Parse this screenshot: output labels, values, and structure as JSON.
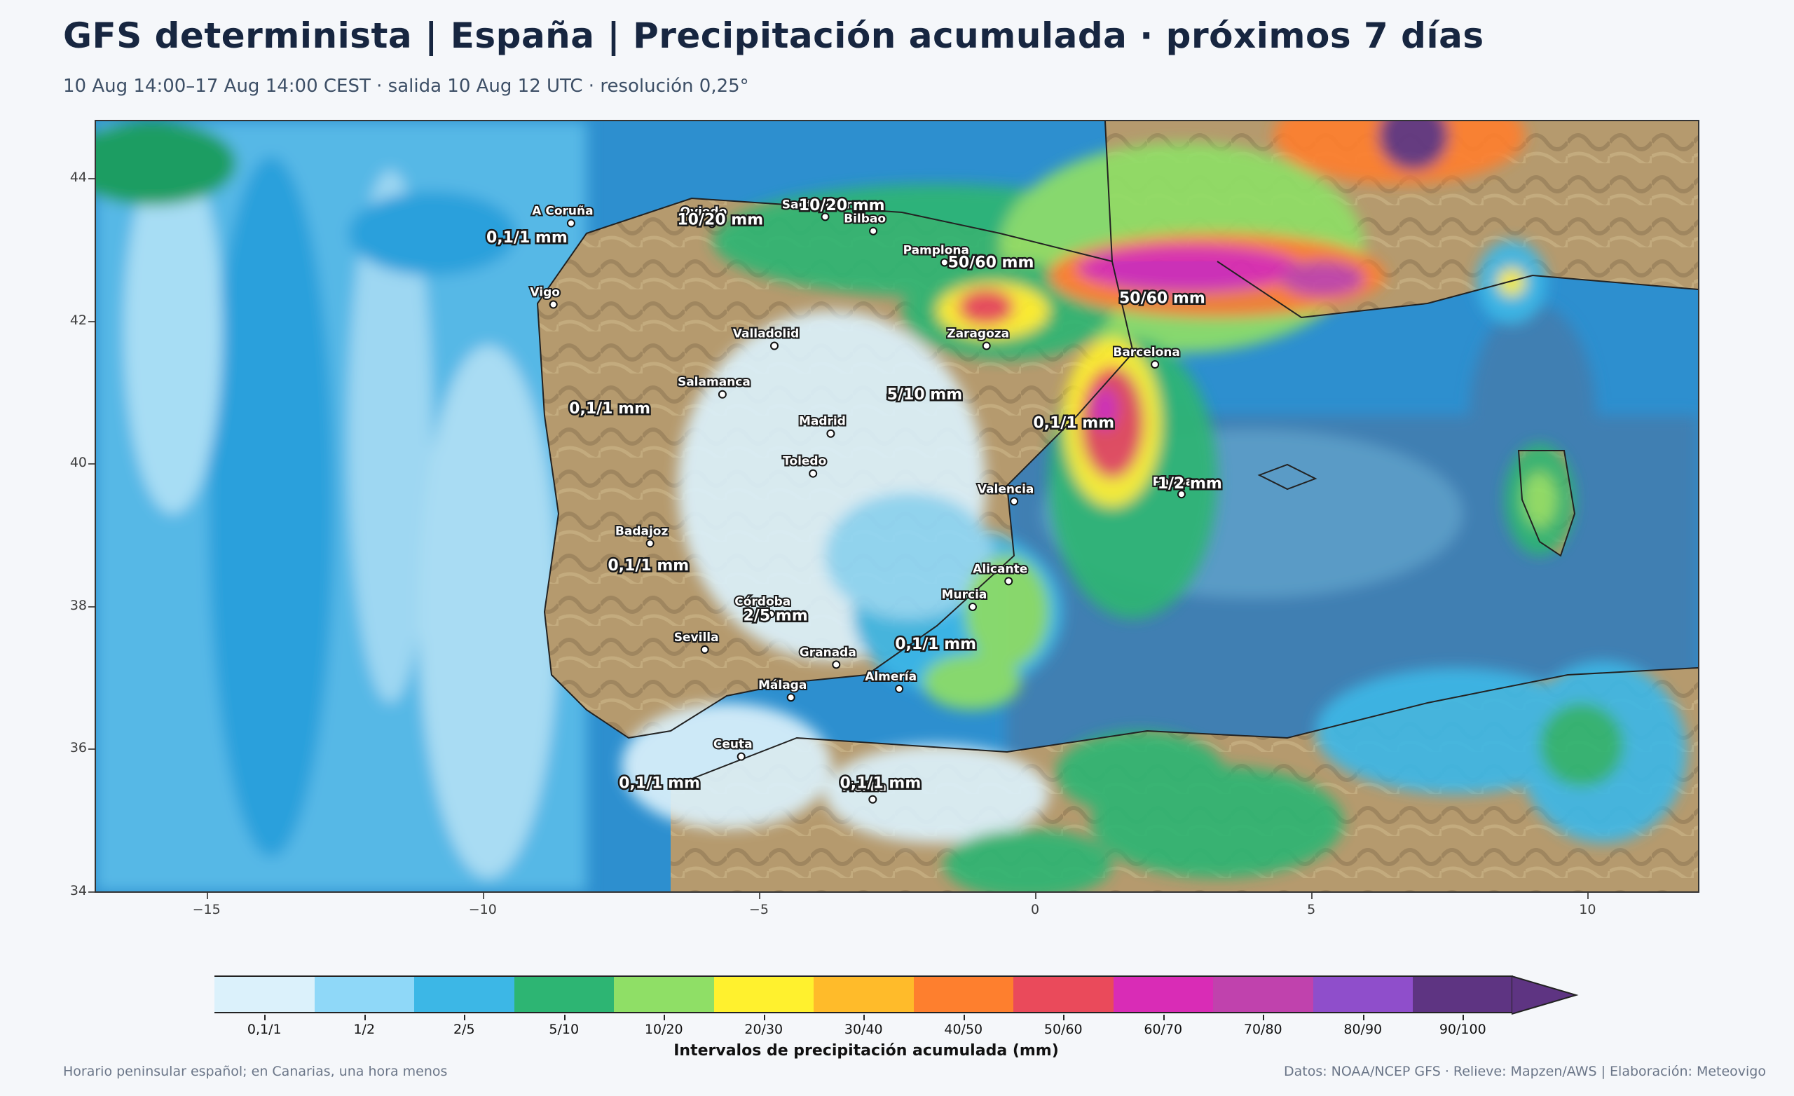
{
  "title": "GFS determinista | España | Precipitación acumulada · próximos 7 días",
  "subtitle": "10 Aug 14:00–17 Aug 14:00 CEST · salida 10 Aug 12 UTC · resolución 0,25°",
  "map": {
    "lon_range": [
      -17,
      12
    ],
    "lat_range": [
      34,
      44.8
    ],
    "x_ticks": [
      "−15",
      "−10",
      "−5",
      "0",
      "5",
      "10"
    ],
    "x_tick_values": [
      -15,
      -10,
      -5,
      0,
      5,
      10
    ],
    "y_ticks": [
      "34",
      "36",
      "38",
      "40",
      "42",
      "44"
    ],
    "y_tick_values": [
      34,
      36,
      38,
      40,
      42,
      44
    ],
    "cities": [
      {
        "name": "A Coruña",
        "lon": -8.4,
        "lat": 43.37
      },
      {
        "name": "Oviedo",
        "lon": -5.85,
        "lat": 43.36
      },
      {
        "name": "Santander",
        "lon": -3.8,
        "lat": 43.46
      },
      {
        "name": "Bilbao",
        "lon": -2.93,
        "lat": 43.26
      },
      {
        "name": "Pamplona",
        "lon": -1.64,
        "lat": 42.82
      },
      {
        "name": "Vigo",
        "lon": -8.72,
        "lat": 42.23
      },
      {
        "name": "Valladolid",
        "lon": -4.72,
        "lat": 41.65
      },
      {
        "name": "Zaragoza",
        "lon": -0.88,
        "lat": 41.65
      },
      {
        "name": "Barcelona",
        "lon": 2.17,
        "lat": 41.39
      },
      {
        "name": "Salamanca",
        "lon": -5.66,
        "lat": 40.97
      },
      {
        "name": "Madrid",
        "lon": -3.7,
        "lat": 40.42
      },
      {
        "name": "Toledo",
        "lon": -4.02,
        "lat": 39.86
      },
      {
        "name": "Valencia",
        "lon": -0.38,
        "lat": 39.47
      },
      {
        "name": "Palma",
        "lon": 2.65,
        "lat": 39.57
      },
      {
        "name": "Badajoz",
        "lon": -6.97,
        "lat": 38.88
      },
      {
        "name": "Córdoba",
        "lon": -4.78,
        "lat": 37.89
      },
      {
        "name": "Murcia",
        "lon": -1.13,
        "lat": 37.99
      },
      {
        "name": "Alicante",
        "lon": -0.48,
        "lat": 38.35
      },
      {
        "name": "Sevilla",
        "lon": -5.98,
        "lat": 37.39
      },
      {
        "name": "Granada",
        "lon": -3.6,
        "lat": 37.18
      },
      {
        "name": "Almería",
        "lon": -2.46,
        "lat": 36.84
      },
      {
        "name": "Málaga",
        "lon": -4.42,
        "lat": 36.72
      },
      {
        "name": "Ceuta",
        "lon": -5.32,
        "lat": 35.89
      },
      {
        "name": "Melilla",
        "lon": -2.94,
        "lat": 35.29
      }
    ],
    "amounts": [
      {
        "text": "0,1/1 mm",
        "lon": -9.2,
        "lat": 43.1
      },
      {
        "text": "10/20 mm",
        "lon": -5.7,
        "lat": 43.35
      },
      {
        "text": "10/20 mm",
        "lon": -3.5,
        "lat": 43.55
      },
      {
        "text": "50/60 mm",
        "lon": -0.8,
        "lat": 42.75
      },
      {
        "text": "50/60 mm",
        "lon": 2.3,
        "lat": 42.25
      },
      {
        "text": "0,1/1 mm",
        "lon": -7.7,
        "lat": 40.7
      },
      {
        "text": "5/10 mm",
        "lon": -2.0,
        "lat": 40.9
      },
      {
        "text": "0,1/1 mm",
        "lon": 0.7,
        "lat": 40.5
      },
      {
        "text": "1/2 mm",
        "lon": 2.8,
        "lat": 39.65
      },
      {
        "text": "0,1/1 mm",
        "lon": -7.0,
        "lat": 38.5
      },
      {
        "text": "2/5 mm",
        "lon": -4.7,
        "lat": 37.8
      },
      {
        "text": "0,1/1 mm",
        "lon": -1.8,
        "lat": 37.4
      },
      {
        "text": "0,1/1 mm",
        "lon": -6.8,
        "lat": 35.45
      },
      {
        "text": "0,1/1 mm",
        "lon": -2.8,
        "lat": 35.45
      }
    ]
  },
  "colorbar": {
    "title": "Intervalos de precipitación acumulada (mm)",
    "bins": [
      {
        "label": "0,1/1",
        "color": "#dbf1fb"
      },
      {
        "label": "1/2",
        "color": "#8fd8f8"
      },
      {
        "label": "2/5",
        "color": "#3cb7e6"
      },
      {
        "label": "5/10",
        "color": "#2db573"
      },
      {
        "label": "10/20",
        "color": "#8fdf66"
      },
      {
        "label": "20/30",
        "color": "#fff12e"
      },
      {
        "label": "30/40",
        "color": "#ffbb2a"
      },
      {
        "label": "40/50",
        "color": "#fe7f2e"
      },
      {
        "label": "50/60",
        "color": "#ea4a5b"
      },
      {
        "label": "60/70",
        "color": "#d92cb6"
      },
      {
        "label": "70/80",
        "color": "#c042ad"
      },
      {
        "label": "80/90",
        "color": "#8f4ecb"
      },
      {
        "label": "90/100",
        "color": "#5e3482"
      }
    ]
  },
  "footer": {
    "left": "Horario peninsular español; en Canarias, una hora menos",
    "right": "Datos: NOAA/NCEP GFS · Relieve: Mapzen/AWS | Elaboración: Meteovigo"
  }
}
